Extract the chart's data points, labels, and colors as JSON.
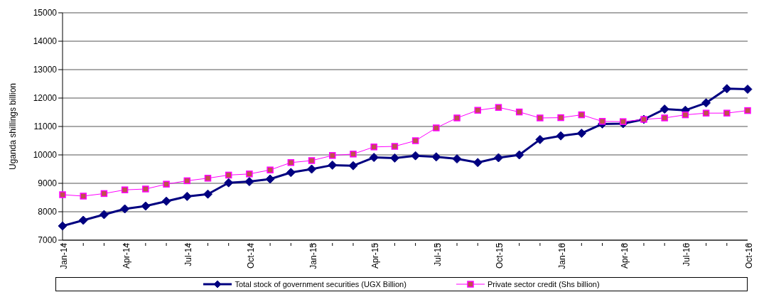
{
  "chart_data": {
    "type": "line",
    "ylabel": "Uganda shillings  billion",
    "categories": [
      "Jan-14",
      null,
      null,
      "Apr-14",
      null,
      null,
      "Jul-14",
      null,
      null,
      "Oct-14",
      null,
      null,
      "Jan-15",
      null,
      null,
      "Apr-15",
      null,
      null,
      "Jul-15",
      null,
      null,
      "Oct-15",
      null,
      null,
      "Jan-16",
      null,
      null,
      "Apr-16",
      null,
      null,
      "Jul-16",
      null,
      null,
      "Oct-16"
    ],
    "series": [
      {
        "name": "Total stock of government securities (UGX Billion)",
        "color": "#000080",
        "marker": "diamond",
        "values": [
          7500,
          7700,
          7900,
          8100,
          8200,
          8370,
          8540,
          8620,
          9020,
          9060,
          9150,
          9380,
          9500,
          9640,
          9620,
          9910,
          9890,
          9970,
          9930,
          9860,
          9730,
          9900,
          10000,
          10540,
          10670,
          10760,
          11090,
          11100,
          11250,
          11610,
          11570,
          11830,
          12330,
          12310
        ]
      },
      {
        "name": "Private sector credit (Shs billion)",
        "color": "#ff00ff",
        "marker": "square",
        "values": [
          8600,
          8550,
          8640,
          8770,
          8800,
          8970,
          9090,
          9180,
          9290,
          9330,
          9470,
          9730,
          9800,
          9980,
          10030,
          10280,
          10300,
          10500,
          10950,
          11300,
          11570,
          11670,
          11510,
          11300,
          11310,
          11410,
          11180,
          11170,
          11250,
          11300,
          11410,
          11470,
          11470,
          11560
        ]
      }
    ],
    "ylim": [
      7000,
      15000
    ],
    "yticks": [
      7000,
      8000,
      9000,
      10000,
      11000,
      12000,
      13000,
      14000,
      15000
    ],
    "grid": "y",
    "legend": "bottom"
  }
}
